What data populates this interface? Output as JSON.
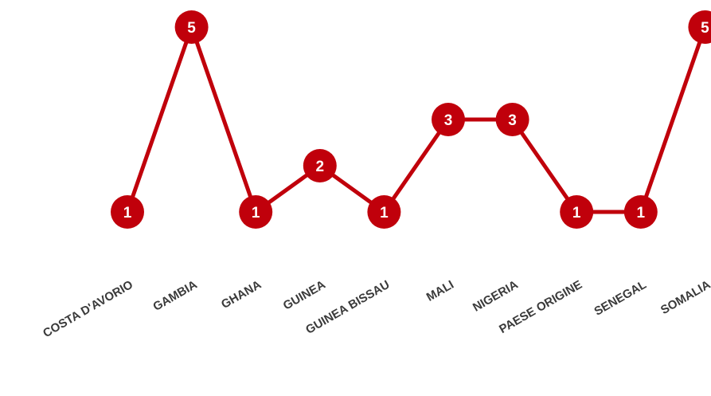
{
  "chart_data": {
    "type": "line",
    "categories": [
      "COSTA D'AVORIO",
      "GAMBIA",
      "GHANA",
      "GUINEA",
      "GUINEA BISSAU",
      "MALI",
      "NIGERIA",
      "PAESE ORIGINE",
      "SENEGAL",
      "SOMALIA"
    ],
    "series": [
      {
        "values": [
          1,
          5,
          1,
          2,
          1,
          3,
          3,
          1,
          1,
          5
        ]
      }
    ],
    "ylim": [
      1,
      5
    ],
    "grid": false,
    "color": "#c0000b"
  }
}
